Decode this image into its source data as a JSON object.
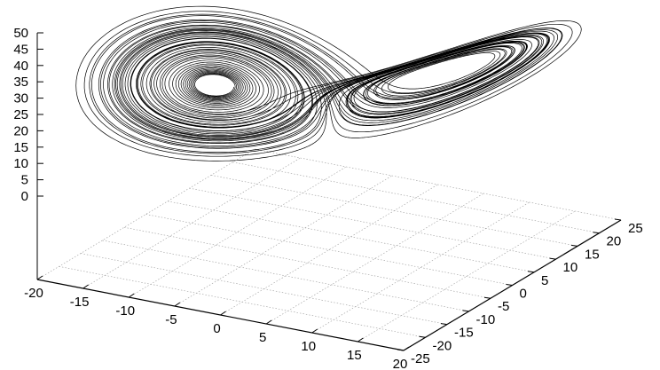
{
  "chart_data": {
    "type": "line",
    "projection": "3d",
    "title": "",
    "xlabel": "",
    "ylabel": "",
    "zlabel": "",
    "xlim": [
      -20,
      20
    ],
    "ylim": [
      -25,
      25
    ],
    "zlim": [
      0,
      50
    ],
    "x_ticks": [
      "-20",
      "-15",
      "-10",
      "-5",
      "0",
      "5",
      "10",
      "15",
      "20"
    ],
    "y_ticks": [
      "-25",
      "-20",
      "-15",
      "-10",
      "-5",
      "0",
      "5",
      "10",
      "15",
      "20",
      "25"
    ],
    "z_ticks": [
      "0",
      "5",
      "10",
      "15",
      "20",
      "25",
      "30",
      "35",
      "40",
      "45",
      "50"
    ],
    "grid": true,
    "legend": "none",
    "series": [
      {
        "curve": "Lorenz attractor trajectory",
        "color": "#000000"
      }
    ]
  }
}
